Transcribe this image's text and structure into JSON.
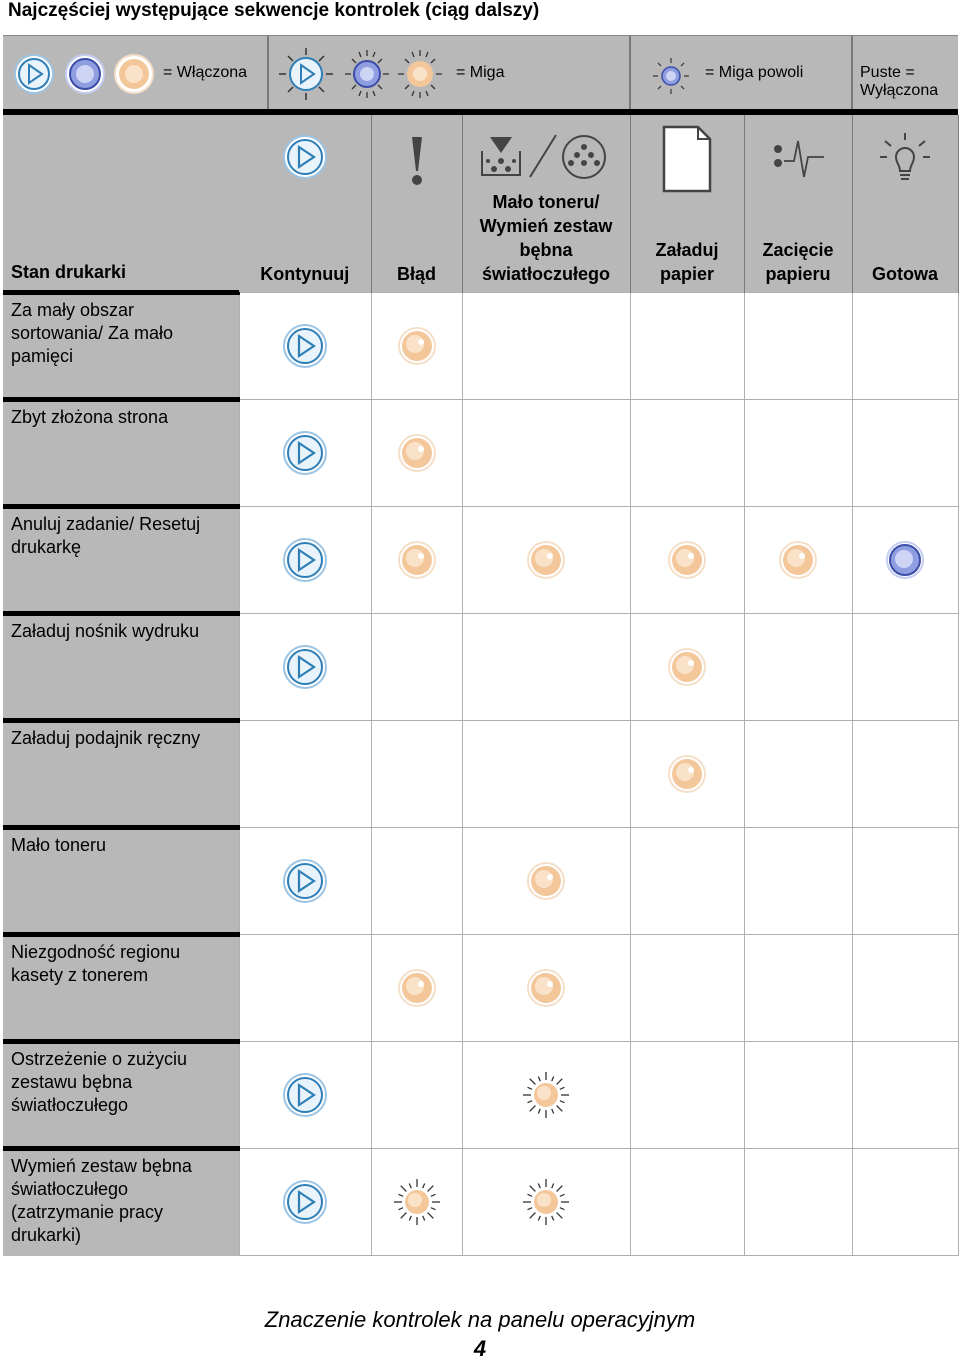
{
  "page_title": "Najczęściej występujące sekwencje kontrolek (ciąg dalszy)",
  "legend": {
    "on": "= Włączona",
    "blink": "= Miga",
    "blink_slow": "= Miga powoli",
    "empty_line1": "Puste =",
    "empty_line2": "Wyłączona"
  },
  "columns": {
    "state": "Stan drukarki",
    "continue": "Kontynuuj",
    "error": "Błąd",
    "toner_line1": "Mało toneru/",
    "toner_line2": "Wymień zestaw",
    "toner_line3": "bębna",
    "toner_line4": "światłoczułego",
    "paper_line1": "Załaduj",
    "paper_line2": "papier",
    "jam_line1": "Zacięcie",
    "jam_line2": "papieru",
    "ready": "Gotowa"
  },
  "rows": [
    {
      "state": "Za mały obszar sortowania/ Za mało pamięci",
      "lights": [
        "on-continue",
        "on-amber",
        "",
        "",
        "",
        ""
      ]
    },
    {
      "state": "Zbyt złożona strona",
      "lights": [
        "on-continue",
        "on-amber",
        "",
        "",
        "",
        ""
      ]
    },
    {
      "state": "Anuluj zadanie/ Resetuj drukarkę",
      "lights": [
        "on-continue",
        "on-amber",
        "on-amber",
        "on-amber",
        "on-amber",
        "on-blue"
      ]
    },
    {
      "state": "Załaduj nośnik wydruku",
      "lights": [
        "on-continue",
        "",
        "",
        "on-amber",
        "",
        ""
      ]
    },
    {
      "state": "Załaduj podajnik ręczny",
      "lights": [
        "",
        "",
        "",
        "on-amber",
        "",
        ""
      ]
    },
    {
      "state": "Mało toneru",
      "lights": [
        "on-continue",
        "",
        "on-amber",
        "",
        "",
        ""
      ]
    },
    {
      "state": "Niezgodność regionu kasety z tonerem",
      "lights": [
        "",
        "on-amber",
        "on-amber",
        "",
        "",
        ""
      ]
    },
    {
      "state": "Ostrzeżenie o zużyciu zestawu bębna światłoczułego",
      "lights": [
        "on-continue",
        "",
        "blink-amber",
        "",
        "",
        ""
      ]
    },
    {
      "state": "Wymień zestaw bębna światłoczułego (zatrzymanie pracy drukarki)",
      "lights": [
        "on-continue",
        "blink-amber",
        "blink-amber",
        "",
        "",
        ""
      ]
    }
  ],
  "footer": {
    "section": "Znaczenie kontrolek na panelu operacyjnym",
    "page_number": "4"
  },
  "colors": {
    "header_gray": "#b8b8b8",
    "continue_blue": "#2f7fb6",
    "amber": "#f4c79a",
    "blue_light": "#8f9ee0"
  }
}
